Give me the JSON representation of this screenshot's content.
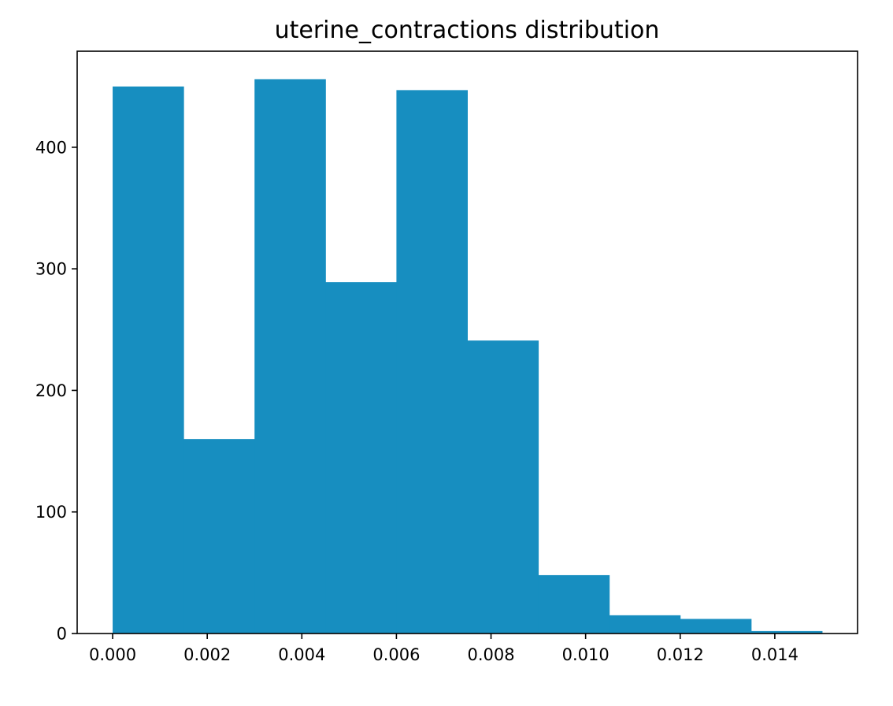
{
  "chart_data": {
    "type": "bar",
    "title": "uterine_contractions distribution",
    "xlabel": "",
    "ylabel": "",
    "bin_edges": [
      0.0,
      0.0015,
      0.003,
      0.0045,
      0.006,
      0.0075,
      0.009,
      0.0105,
      0.012,
      0.0135,
      0.015
    ],
    "values": [
      450,
      160,
      456,
      289,
      447,
      241,
      48,
      15,
      12,
      2
    ],
    "xlim": [
      -0.00075,
      0.01575
    ],
    "ylim": [
      0,
      479
    ],
    "xticks": [
      0.0,
      0.002,
      0.004,
      0.006,
      0.008,
      0.01,
      0.012,
      0.014
    ],
    "xtick_labels": [
      "0.000",
      "0.002",
      "0.004",
      "0.006",
      "0.008",
      "0.010",
      "0.012",
      "0.014"
    ],
    "yticks": [
      0,
      100,
      200,
      300,
      400
    ],
    "ytick_labels": [
      "0",
      "100",
      "200",
      "300",
      "400"
    ],
    "bar_color": "#178ec0",
    "grid": false,
    "legend": "none"
  }
}
